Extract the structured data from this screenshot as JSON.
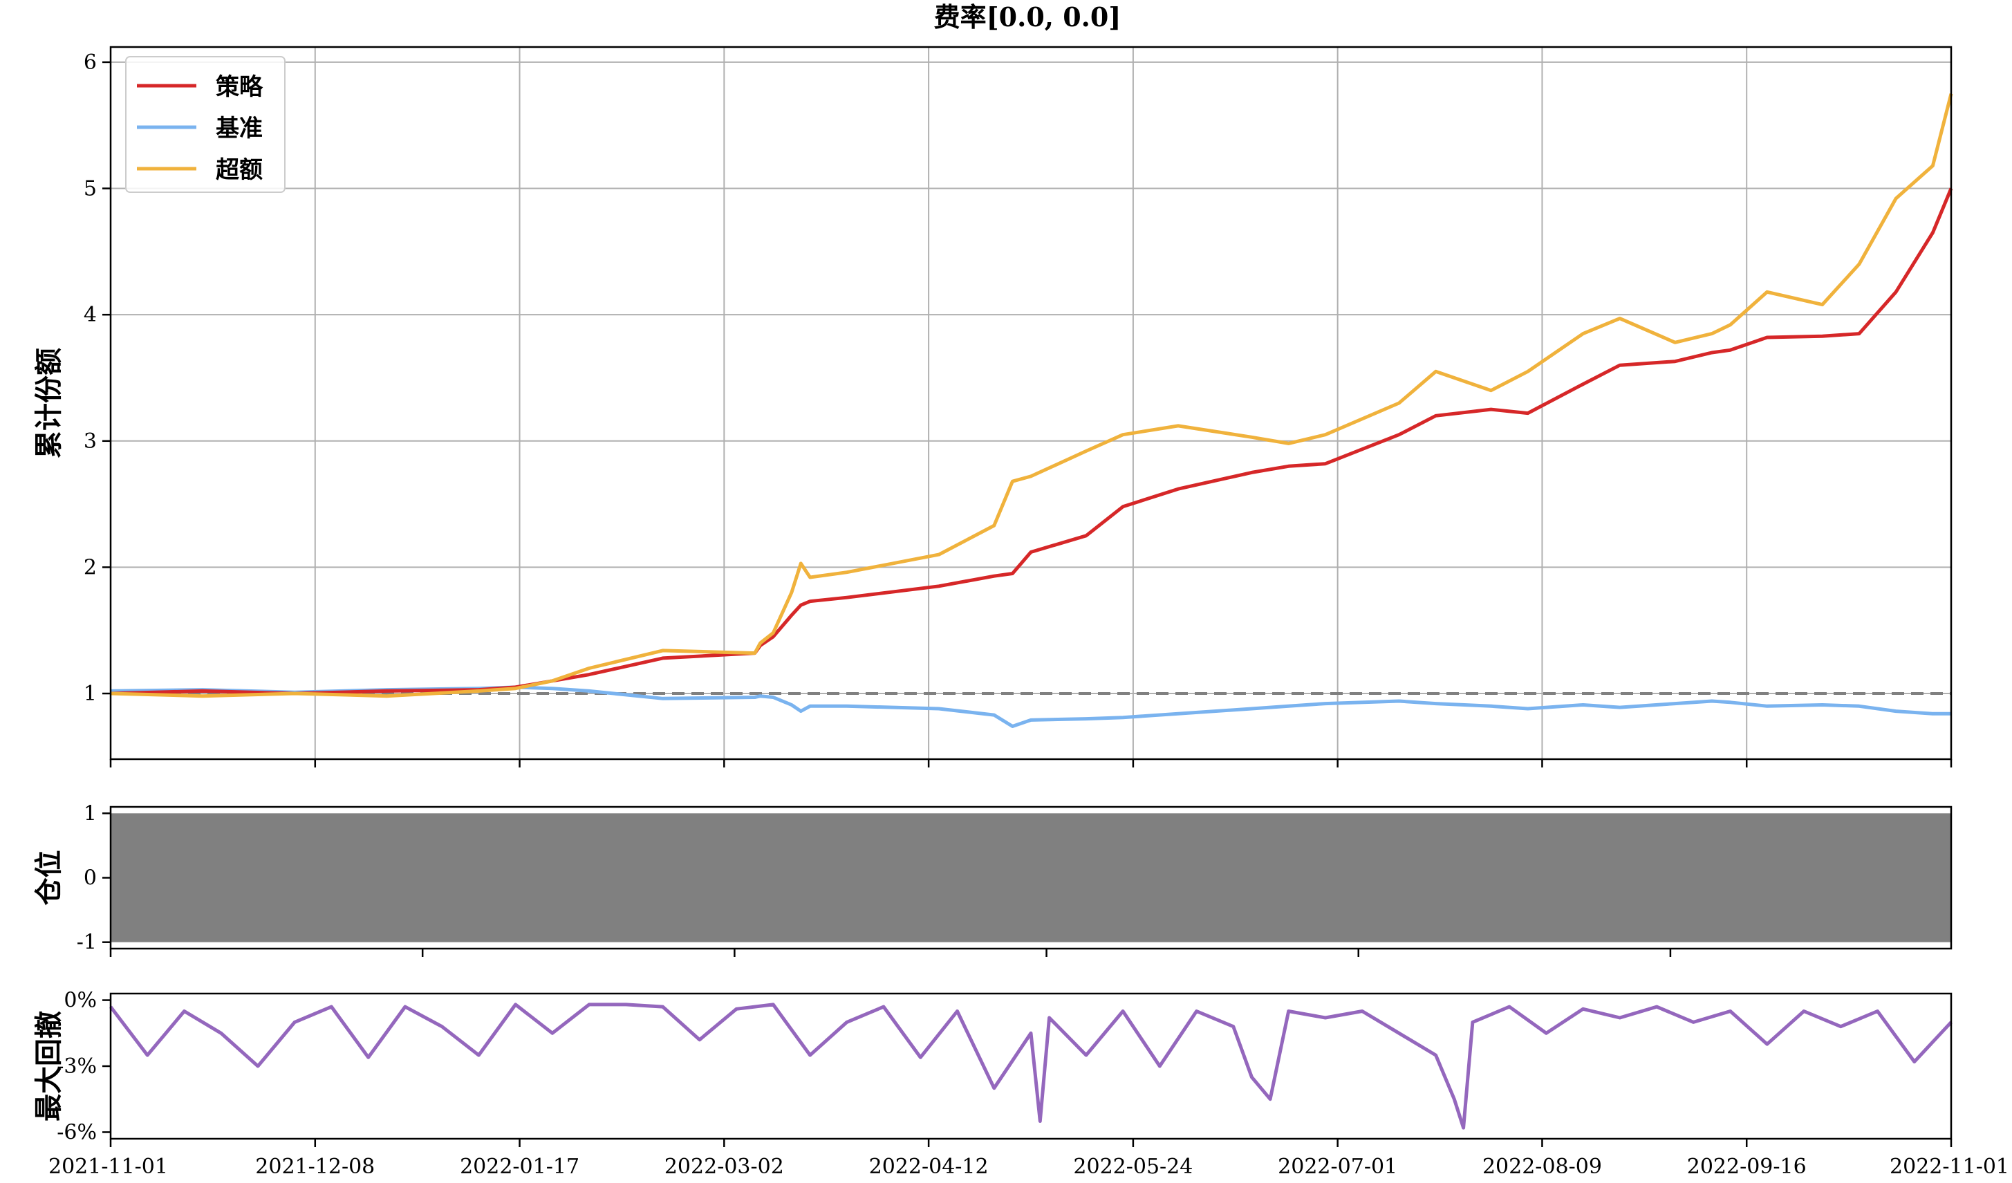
{
  "chart_data": [
    {
      "type": "line",
      "title": "费率[0.0, 0.0]",
      "ylabel": "累计份额",
      "xlabel": "",
      "x_ticks": [
        "2021-11-01",
        "2021-12-08",
        "2022-01-17",
        "2022-03-02",
        "2022-04-12",
        "2022-05-24",
        "2022-07-01",
        "2022-08-09",
        "2022-09-16",
        "2022-11-01"
      ],
      "y_ticks": [
        "1",
        "2",
        "3",
        "4",
        "5",
        "6"
      ],
      "ylim": [
        0.48,
        6.12
      ],
      "grid": true,
      "legend": "top-left",
      "reference_line": {
        "y": 1.0,
        "style": "dashed"
      },
      "x": [
        0,
        0.05,
        0.1,
        0.15,
        0.2,
        0.22,
        0.24,
        0.26,
        0.3,
        0.35,
        0.353,
        0.36,
        0.37,
        0.375,
        0.38,
        0.4,
        0.45,
        0.48,
        0.49,
        0.5,
        0.53,
        0.55,
        0.58,
        0.62,
        0.64,
        0.66,
        0.7,
        0.72,
        0.75,
        0.77,
        0.8,
        0.82,
        0.85,
        0.87,
        0.88,
        0.9,
        0.93,
        0.95,
        0.97,
        0.99,
        1.0
      ],
      "series": [
        {
          "name": "策略",
          "color": "#d62728",
          "values": [
            1.0,
            1.02,
            1.0,
            1.02,
            1.03,
            1.05,
            1.1,
            1.15,
            1.28,
            1.32,
            1.38,
            1.45,
            1.62,
            1.7,
            1.73,
            1.76,
            1.85,
            1.93,
            1.95,
            2.12,
            2.25,
            2.48,
            2.62,
            2.75,
            2.8,
            2.82,
            3.05,
            3.2,
            3.25,
            3.22,
            3.45,
            3.6,
            3.63,
            3.7,
            3.72,
            3.82,
            3.83,
            3.85,
            4.18,
            4.65,
            5.0
          ]
        },
        {
          "name": "基准",
          "color": "#7ab3ef",
          "values": [
            1.02,
            1.03,
            1.01,
            1.03,
            1.04,
            1.05,
            1.04,
            1.02,
            0.96,
            0.97,
            0.98,
            0.97,
            0.91,
            0.86,
            0.9,
            0.9,
            0.88,
            0.83,
            0.74,
            0.79,
            0.8,
            0.81,
            0.84,
            0.88,
            0.9,
            0.92,
            0.94,
            0.92,
            0.9,
            0.88,
            0.91,
            0.89,
            0.92,
            0.94,
            0.93,
            0.9,
            0.91,
            0.9,
            0.86,
            0.84,
            0.84
          ]
        },
        {
          "name": "超额",
          "color": "#f0b23c",
          "values": [
            1.0,
            0.98,
            1.0,
            0.98,
            1.02,
            1.04,
            1.1,
            1.2,
            1.34,
            1.32,
            1.4,
            1.48,
            1.8,
            2.03,
            1.92,
            1.96,
            2.1,
            2.33,
            2.68,
            2.72,
            2.92,
            3.05,
            3.12,
            3.03,
            2.98,
            3.05,
            3.3,
            3.55,
            3.4,
            3.55,
            3.85,
            3.97,
            3.78,
            3.85,
            3.92,
            4.18,
            4.08,
            4.4,
            4.92,
            5.18,
            5.75
          ]
        }
      ]
    },
    {
      "type": "area",
      "ylabel": "仓位",
      "y_ticks": [
        "-1",
        "0",
        "1"
      ],
      "ylim": [
        -1.1,
        1.1
      ],
      "grid": false,
      "series": [
        {
          "color": "#808080",
          "values": [
            -1.0,
            1.0
          ]
        }
      ]
    },
    {
      "type": "line",
      "ylabel": "最大回撤",
      "y_ticks": [
        "0%",
        "-3%",
        "-6%"
      ],
      "ylim": [
        -6.3,
        0.3
      ],
      "grid": false,
      "x": [
        0,
        0.02,
        0.04,
        0.06,
        0.08,
        0.1,
        0.12,
        0.14,
        0.16,
        0.18,
        0.2,
        0.22,
        0.24,
        0.26,
        0.28,
        0.3,
        0.32,
        0.34,
        0.36,
        0.38,
        0.4,
        0.42,
        0.44,
        0.46,
        0.48,
        0.5,
        0.505,
        0.51,
        0.53,
        0.55,
        0.57,
        0.59,
        0.61,
        0.62,
        0.63,
        0.64,
        0.66,
        0.68,
        0.7,
        0.72,
        0.73,
        0.735,
        0.74,
        0.76,
        0.78,
        0.8,
        0.82,
        0.84,
        0.86,
        0.88,
        0.9,
        0.92,
        0.94,
        0.96,
        0.98,
        1.0
      ],
      "series": [
        {
          "name": "最大回撤",
          "color": "#9467bd",
          "values": [
            -0.3,
            -2.5,
            -0.5,
            -1.5,
            -3.0,
            -1.0,
            -0.3,
            -2.6,
            -0.3,
            -1.2,
            -2.5,
            -0.2,
            -1.5,
            -0.2,
            -0.2,
            -0.3,
            -1.8,
            -0.4,
            -0.2,
            -2.5,
            -1.0,
            -0.3,
            -2.6,
            -0.5,
            -4.0,
            -1.5,
            -5.5,
            -0.8,
            -2.5,
            -0.5,
            -3.0,
            -0.5,
            -1.2,
            -3.5,
            -4.5,
            -0.5,
            -0.8,
            -0.5,
            -1.5,
            -2.5,
            -4.5,
            -5.8,
            -1.0,
            -0.3,
            -1.5,
            -0.4,
            -0.8,
            -0.3,
            -1.0,
            -0.5,
            -2.0,
            -0.5,
            -1.2,
            -0.5,
            -2.8,
            -1.0
          ]
        }
      ]
    }
  ]
}
